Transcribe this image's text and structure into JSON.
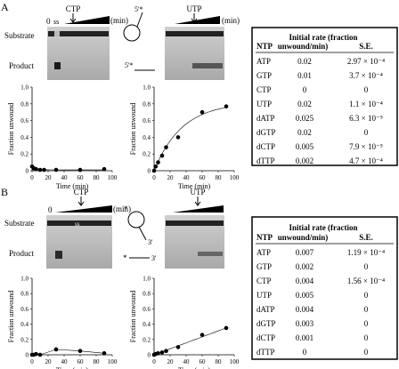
{
  "panels": [
    {
      "label": "A",
      "gel_left_nucleotide": "CTP",
      "gel_right_nucleotide": "UTP",
      "lane_zero": "0",
      "lane_ss": "ss",
      "time_unit": "(min)",
      "row_substrate": "Substrate",
      "row_product": "Product",
      "diagram_mark_top": "5'*",
      "diagram_mark_bottom": "5'*",
      "table": {
        "header_ntp": "NTP",
        "header_rate": "Initial rate (fraction unwound/min)",
        "header_se": "S.E.",
        "rows": [
          {
            "ntp": "ATP",
            "rate": "0.02",
            "se": "2.97 × 10⁻⁴"
          },
          {
            "ntp": "GTP",
            "rate": "0.01",
            "se": "3.7 × 10⁻⁴"
          },
          {
            "ntp": "CTP",
            "rate": "0",
            "se": "0"
          },
          {
            "ntp": "UTP",
            "rate": "0.02",
            "se": "1.1 × 10⁻⁴"
          },
          {
            "ntp": "dATP",
            "rate": "0.025",
            "se": "6.3 × 10⁻⁵"
          },
          {
            "ntp": "dGTP",
            "rate": "0.02",
            "se": "0"
          },
          {
            "ntp": "dCTP",
            "rate": "0.005",
            "se": "7.9 × 10⁻⁵"
          },
          {
            "ntp": "dTTP",
            "rate": "0.002",
            "se": "4.7 × 10⁻⁴"
          }
        ]
      }
    },
    {
      "label": "B",
      "gel_left_nucleotide": "CTP",
      "gel_right_nucleotide": "UTP",
      "lane_zero": "0",
      "lane_ss": "ss",
      "time_unit": "(min)",
      "row_substrate": "Substrate",
      "row_product": "Product",
      "diagram_mark_top": "*",
      "diagram_mark_three": "3'",
      "diagram_mark_bottom": "*",
      "diagram_mark_bottom_three": "3'",
      "table": {
        "header_ntp": "NTP",
        "header_rate": "Initial rate (fraction unwound/min)",
        "header_se": "S.E.",
        "rows": [
          {
            "ntp": "ATP",
            "rate": "0.007",
            "se": "1.19 × 10⁻⁴"
          },
          {
            "ntp": "GTP",
            "rate": "0.002",
            "se": "0"
          },
          {
            "ntp": "CTP",
            "rate": "0.004",
            "se": "1.56 × 10⁻⁴"
          },
          {
            "ntp": "UTP",
            "rate": "0.005",
            "se": "0"
          },
          {
            "ntp": "dATP",
            "rate": "0.004",
            "se": "0"
          },
          {
            "ntp": "dGTP",
            "rate": "0.003",
            "se": "0"
          },
          {
            "ntp": "dCTP",
            "rate": "0.001",
            "se": "0"
          },
          {
            "ntp": "dTTP",
            "rate": "0",
            "se": "0"
          }
        ]
      }
    }
  ],
  "chart_data": [
    {
      "type": "scatter",
      "panel": "A",
      "nucleotide": "CTP",
      "xlabel": "Time (min)",
      "ylabel": "Fraction unwound",
      "xlim": [
        0,
        100
      ],
      "ylim": [
        0,
        1.0
      ],
      "xticks": [
        0,
        20,
        40,
        60,
        80,
        100
      ],
      "yticks": [
        0,
        0.2,
        0.4,
        0.6,
        0.8,
        1.0
      ],
      "x": [
        0,
        2,
        5,
        10,
        15,
        30,
        60,
        90
      ],
      "y": [
        0.05,
        0.03,
        0.02,
        0.01,
        0.01,
        0.01,
        0.01,
        0.02
      ]
    },
    {
      "type": "scatter",
      "panel": "A",
      "nucleotide": "UTP",
      "xlabel": "Time (min)",
      "ylabel": "Fraction unwound",
      "xlim": [
        0,
        100
      ],
      "ylim": [
        0,
        1.0
      ],
      "xticks": [
        0,
        20,
        40,
        60,
        80,
        100
      ],
      "yticks": [
        0,
        0.2,
        0.4,
        0.6,
        0.8,
        1.0
      ],
      "x": [
        0,
        2,
        5,
        10,
        15,
        30,
        60,
        90
      ],
      "y": [
        0.0,
        0.05,
        0.1,
        0.18,
        0.28,
        0.4,
        0.7,
        0.77
      ]
    },
    {
      "type": "scatter",
      "panel": "B",
      "nucleotide": "CTP",
      "xlabel": "Time (min)",
      "ylabel": "Fraction unwound",
      "xlim": [
        0,
        100
      ],
      "ylim": [
        0,
        1.0
      ],
      "xticks": [
        0,
        20,
        40,
        60,
        80,
        100
      ],
      "yticks": [
        0,
        0.2,
        0.4,
        0.6,
        0.8,
        1.0
      ],
      "x": [
        0,
        2,
        5,
        10,
        30,
        60,
        90
      ],
      "y": [
        0.0,
        0.0,
        0.01,
        0.0,
        0.07,
        0.05,
        0.02
      ]
    },
    {
      "type": "scatter",
      "panel": "B",
      "nucleotide": "UTP",
      "xlabel": "Time (min)",
      "ylabel": "Fraction unwound",
      "xlim": [
        0,
        100
      ],
      "ylim": [
        0,
        1.0
      ],
      "xticks": [
        0,
        20,
        40,
        60,
        80,
        100
      ],
      "yticks": [
        0,
        0.2,
        0.4,
        0.6,
        0.8,
        1.0
      ],
      "x": [
        0,
        2,
        5,
        10,
        15,
        30,
        60,
        90
      ],
      "y": [
        0.0,
        0.01,
        0.02,
        0.03,
        0.05,
        0.1,
        0.26,
        0.35
      ]
    }
  ]
}
